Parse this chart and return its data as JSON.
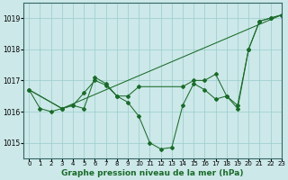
{
  "background_color": "#cce8e8",
  "plot_bg_color": "#cce8e8",
  "grid_color": "#99cccc",
  "line_color": "#1a6b2a",
  "xlabel": "Graphe pression niveau de la mer (hPa)",
  "xlim": [
    -0.5,
    23
  ],
  "ylim": [
    1014.5,
    1019.5
  ],
  "yticks": [
    1015,
    1016,
    1017,
    1018,
    1019
  ],
  "xticks": [
    0,
    1,
    2,
    3,
    4,
    5,
    6,
    7,
    8,
    9,
    10,
    11,
    12,
    13,
    14,
    15,
    16,
    17,
    18,
    19,
    20,
    21,
    22,
    23
  ],
  "series1_x": [
    0,
    1,
    2,
    3,
    4,
    5,
    6,
    7,
    8,
    9,
    10,
    11,
    12,
    13,
    14,
    15,
    16,
    17,
    18,
    19,
    20,
    21,
    22,
    23
  ],
  "series1_y": [
    1016.7,
    1016.1,
    1016.0,
    1016.1,
    1016.2,
    1016.1,
    1017.1,
    1016.9,
    1016.5,
    1016.3,
    1015.85,
    1015.0,
    1014.8,
    1014.85,
    1016.2,
    1016.9,
    1016.7,
    1016.4,
    1016.5,
    1016.1,
    1018.0,
    1018.9,
    1019.0,
    1019.1
  ],
  "series2_x": [
    0,
    3,
    4,
    5,
    6,
    7,
    8,
    9,
    10,
    14,
    15,
    16,
    17,
    18,
    19,
    20,
    21,
    22,
    23
  ],
  "series2_y": [
    1016.7,
    1016.1,
    1016.2,
    1016.6,
    1017.0,
    1016.85,
    1016.5,
    1016.5,
    1016.8,
    1016.8,
    1017.0,
    1017.0,
    1017.2,
    1016.5,
    1016.2,
    1018.0,
    1018.9,
    1019.0,
    1019.1
  ],
  "series3_x": [
    0,
    3,
    23
  ],
  "series3_y": [
    1016.7,
    1016.1,
    1019.1
  ]
}
